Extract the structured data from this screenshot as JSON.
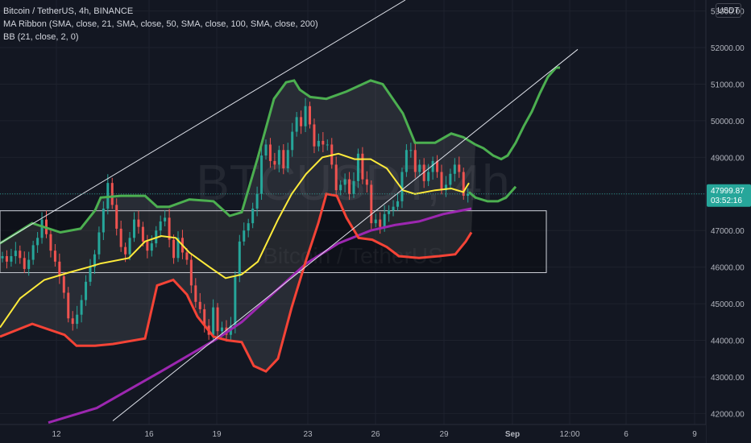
{
  "legend": {
    "title": "Bitcoin / TetherUS, 4h, BINANCE",
    "ma_ribbon": "MA Ribbon (SMA, close, 21, SMA, close, 50, SMA, close, 100, SMA, close, 200)",
    "bb": "BB (21, close, 2, 0)"
  },
  "currency_button": "USDT",
  "watermark": {
    "symbol": "BTCUSDT, 4h",
    "name": "Bitcoin / TetherUS"
  },
  "price_tag": {
    "price": "47999.87",
    "countdown": "03:52:16",
    "color": "#26a69a"
  },
  "colors": {
    "background": "#131722",
    "grid": "#1e222d",
    "up": "#26a69a",
    "down": "#ef5350",
    "bb_upper": "#4caf50",
    "bb_lower": "#f44336",
    "bb_basis": "#ffeb3b",
    "ma200": "#9c27b0",
    "axis_text": "#b2b5be"
  },
  "chart_data": {
    "type": "candlestick",
    "symbol": "Bitcoin / TetherUS",
    "timeframe": "4h",
    "exchange": "BINANCE",
    "y_axis": {
      "ticks": [
        "42000.00",
        "43000.00",
        "44000.00",
        "45000.00",
        "46000.00",
        "47000.00",
        "48000.00",
        "49000.00",
        "50000.00",
        "51000.00",
        "52000.00",
        "53000.00"
      ],
      "range": [
        41700,
        53300
      ]
    },
    "x_axis": {
      "ticks": [
        "12",
        "16",
        "19",
        "23",
        "26",
        "29",
        "Sep",
        "12:00",
        "6",
        "9"
      ],
      "tick_x": [
        70,
        185,
        269,
        382,
        466,
        551,
        636,
        707,
        777,
        862
      ]
    },
    "last_price": 47999.87,
    "candle_closes": [
      46300,
      46150,
      46300,
      46450,
      46250,
      45950,
      46200,
      46600,
      46800,
      47300,
      46900,
      46450,
      46150,
      45750,
      45300,
      44600,
      44450,
      44700,
      45100,
      45600,
      46000,
      46350,
      46950,
      47600,
      48300,
      47700,
      47050,
      46550,
      46350,
      46800,
      47300,
      47100,
      46700,
      46450,
      46650,
      47000,
      47250,
      47350,
      46750,
      46250,
      46800,
      46400,
      46200,
      45500,
      45050,
      44850,
      44400,
      44150,
      44900,
      44250,
      44350,
      44150,
      44400,
      45750,
      46700,
      47000,
      47200,
      47600,
      48000,
      49050,
      49350,
      48900,
      48800,
      49200,
      48700,
      49200,
      49700,
      50100,
      49850,
      50400,
      49900,
      49300,
      49450,
      49350,
      49350,
      48800,
      48100,
      48250,
      48400,
      48000,
      48350,
      49100,
      48400,
      48250,
      47200,
      47300,
      47100,
      47450,
      47550,
      47650,
      47800,
      48600,
      49200,
      49200,
      48600,
      48800,
      48350,
      48600,
      48900,
      48600,
      48100,
      48250,
      48550,
      48800,
      48600,
      47950,
      47999.87
    ],
    "bb_upper": [
      [
        0,
        46650
      ],
      [
        40,
        47200
      ],
      [
        75,
        46950
      ],
      [
        100,
        47050
      ],
      [
        118,
        47550
      ],
      [
        125,
        47900
      ],
      [
        150,
        47950
      ],
      [
        180,
        47950
      ],
      [
        195,
        47650
      ],
      [
        210,
        47650
      ],
      [
        235,
        47850
      ],
      [
        265,
        47800
      ],
      [
        285,
        47400
      ],
      [
        300,
        47500
      ],
      [
        320,
        49000
      ],
      [
        340,
        50600
      ],
      [
        355,
        51050
      ],
      [
        365,
        51100
      ],
      [
        372,
        50850
      ],
      [
        385,
        50650
      ],
      [
        405,
        50600
      ],
      [
        430,
        50800
      ],
      [
        460,
        51100
      ],
      [
        475,
        51000
      ],
      [
        500,
        50200
      ],
      [
        515,
        49400
      ],
      [
        540,
        49400
      ],
      [
        560,
        49650
      ],
      [
        575,
        49550
      ],
      [
        590,
        49350
      ]
    ],
    "bb_lower": [
      [
        0,
        44100
      ],
      [
        40,
        44450
      ],
      [
        80,
        44150
      ],
      [
        95,
        43850
      ],
      [
        118,
        43850
      ],
      [
        140,
        43900
      ],
      [
        180,
        44050
      ],
      [
        195,
        45500
      ],
      [
        215,
        45650
      ],
      [
        232,
        45250
      ],
      [
        245,
        44650
      ],
      [
        265,
        44100
      ],
      [
        282,
        44000
      ],
      [
        300,
        43950
      ],
      [
        315,
        43300
      ],
      [
        330,
        43150
      ],
      [
        345,
        43500
      ],
      [
        362,
        44900
      ],
      [
        380,
        46200
      ],
      [
        395,
        47200
      ],
      [
        405,
        48000
      ],
      [
        418,
        47950
      ],
      [
        430,
        47350
      ],
      [
        445,
        46800
      ],
      [
        462,
        46750
      ],
      [
        480,
        46550
      ],
      [
        495,
        46300
      ],
      [
        520,
        46250
      ],
      [
        545,
        46300
      ],
      [
        565,
        46350
      ],
      [
        578,
        46700
      ],
      [
        585,
        46950
      ]
    ],
    "bb_basis": [
      [
        0,
        44350
      ],
      [
        25,
        45150
      ],
      [
        55,
        45650
      ],
      [
        85,
        45850
      ],
      [
        110,
        46000
      ],
      [
        125,
        46100
      ],
      [
        160,
        46250
      ],
      [
        180,
        46700
      ],
      [
        200,
        46850
      ],
      [
        218,
        46800
      ],
      [
        235,
        46400
      ],
      [
        260,
        46000
      ],
      [
        280,
        45700
      ],
      [
        300,
        45800
      ],
      [
        320,
        46150
      ],
      [
        345,
        47300
      ],
      [
        362,
        48000
      ],
      [
        380,
        48550
      ],
      [
        400,
        49000
      ],
      [
        420,
        49100
      ],
      [
        440,
        48950
      ],
      [
        460,
        48950
      ],
      [
        480,
        48700
      ],
      [
        500,
        48100
      ],
      [
        515,
        48000
      ],
      [
        540,
        48100
      ],
      [
        560,
        48150
      ],
      [
        575,
        48050
      ],
      [
        582,
        48300
      ]
    ],
    "bb_projection_upper": [
      [
        590,
        49350
      ],
      [
        600,
        49250
      ],
      [
        612,
        49050
      ],
      [
        622,
        48950
      ],
      [
        630,
        49050
      ],
      [
        640,
        49400
      ],
      [
        650,
        49850
      ],
      [
        660,
        50250
      ],
      [
        670,
        50750
      ],
      [
        680,
        51200
      ],
      [
        690,
        51450
      ],
      [
        695,
        51450
      ]
    ],
    "bb_projection_lower": [
      [
        582,
        48050
      ],
      [
        590,
        47900
      ],
      [
        605,
        47800
      ],
      [
        618,
        47800
      ],
      [
        628,
        47900
      ],
      [
        640,
        48200
      ]
    ],
    "ma200": [
      [
        60,
        41750
      ],
      [
        120,
        42150
      ],
      [
        200,
        43150
      ],
      [
        270,
        44050
      ],
      [
        300,
        44500
      ],
      [
        340,
        45300
      ],
      [
        380,
        46100
      ],
      [
        420,
        46650
      ],
      [
        460,
        47000
      ],
      [
        490,
        47150
      ],
      [
        520,
        47250
      ],
      [
        550,
        47450
      ],
      [
        585,
        47600
      ]
    ],
    "drawings": {
      "channel_upper": [
        [
          0,
          46650
        ],
        [
          503,
          53300
        ]
      ],
      "channel_lower": [
        [
          140,
          41800
        ],
        [
          717,
          51950
        ]
      ],
      "rectangle": {
        "x": [
          0,
          678
        ],
        "y": [
          45850,
          47540
        ]
      }
    }
  }
}
